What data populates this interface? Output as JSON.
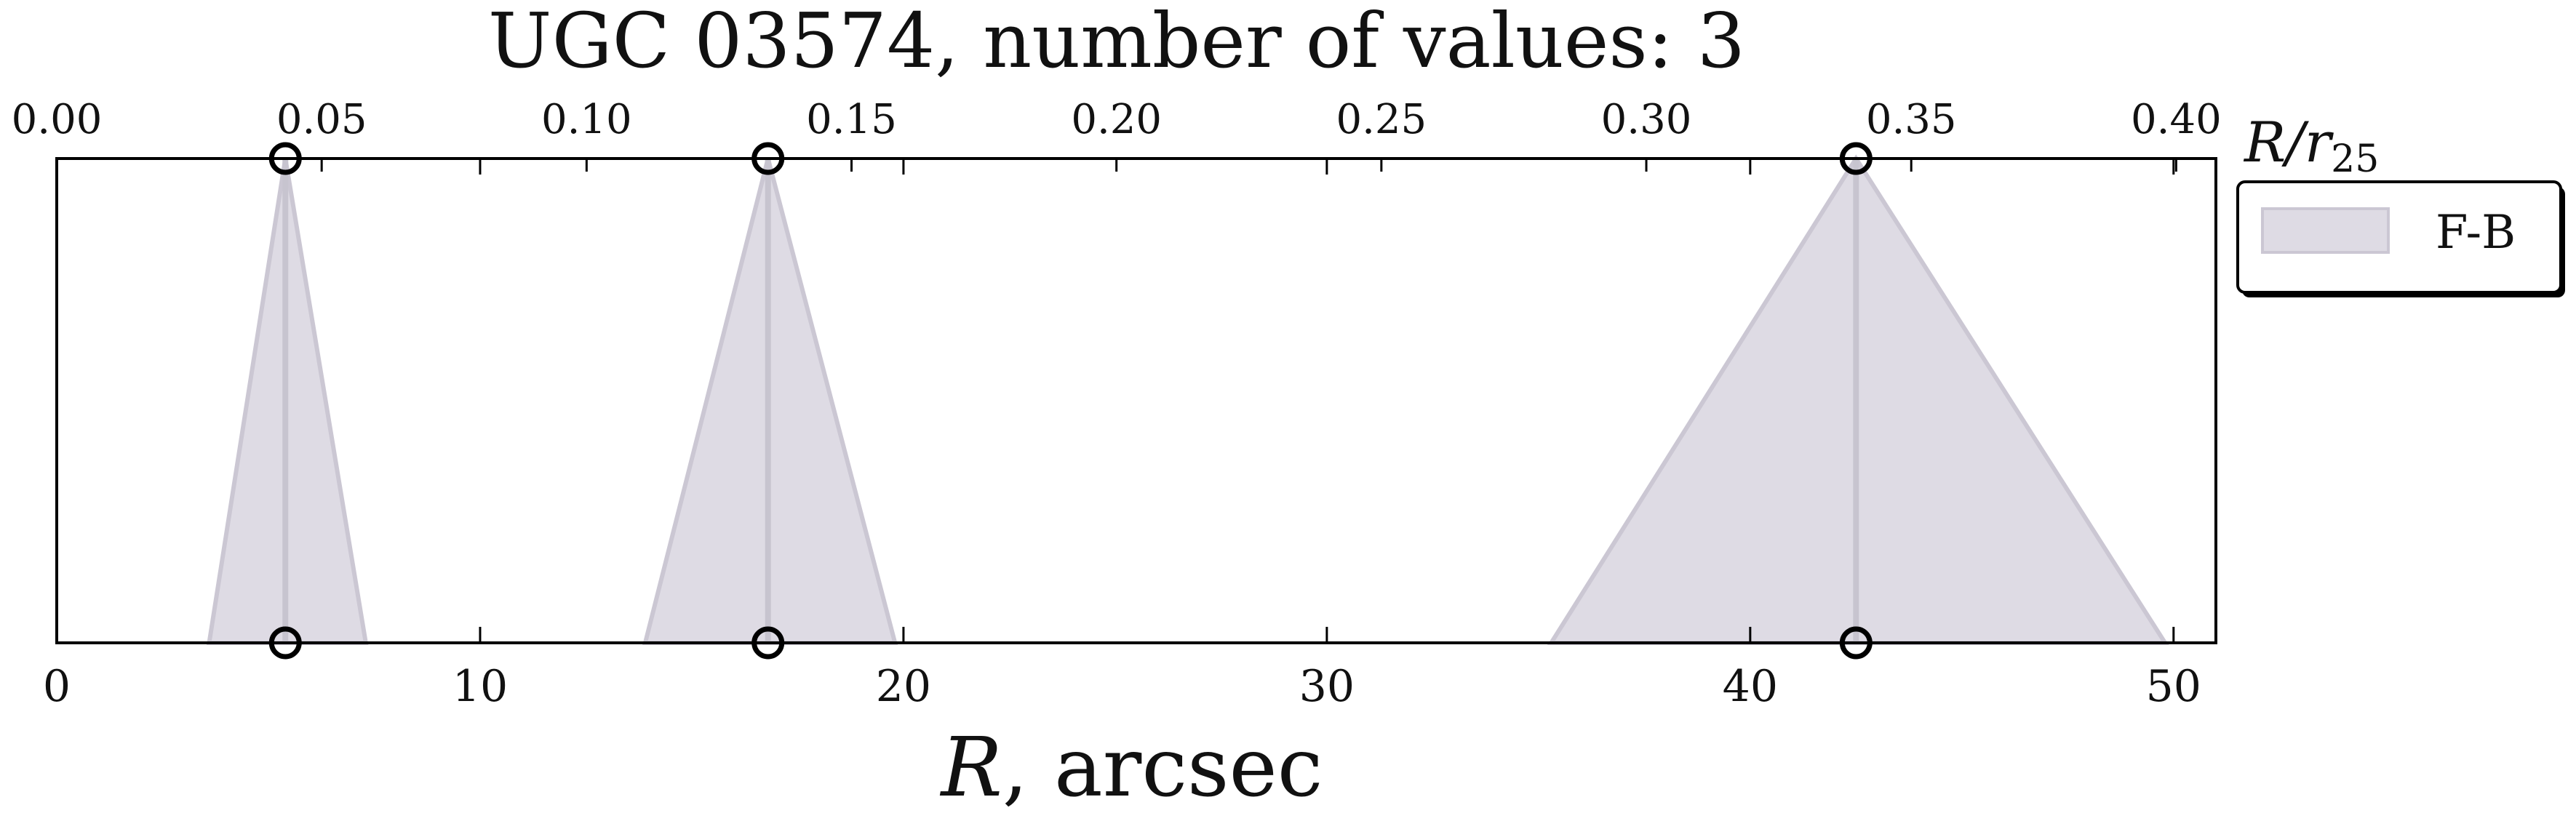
{
  "chart_data": {
    "type": "area",
    "title": "UGC 03574, number of values: 3",
    "xlabel_main": "R",
    "xlabel_unit": ", arcsec",
    "top_axis_label_main": "R/r",
    "top_axis_label_sub": "25",
    "xlim": [
      0,
      51
    ],
    "xticks": [
      0,
      10,
      20,
      30,
      40,
      50
    ],
    "top_xlim": [
      0,
      0.4075
    ],
    "top_xticks": [
      0.0,
      0.05,
      0.1,
      0.15,
      0.2,
      0.25,
      0.3,
      0.35,
      0.4
    ],
    "top_xtick_labels": [
      "0.00",
      "0.05",
      "0.10",
      "0.15",
      "0.20",
      "0.25",
      "0.30",
      "0.35",
      "0.40"
    ],
    "grid": false,
    "legend_placement": "outside-right-top",
    "series": [
      {
        "name": "F-B",
        "color": "#dedbe4",
        "edge_color": "#cbc7d3",
        "points": [
          {
            "x": 5.4,
            "x_lo": 3.6,
            "x_hi": 7.3
          },
          {
            "x": 16.8,
            "x_lo": 13.9,
            "x_hi": 19.8
          },
          {
            "x": 42.5,
            "x_lo": 35.3,
            "x_hi": 49.8
          }
        ]
      }
    ]
  }
}
